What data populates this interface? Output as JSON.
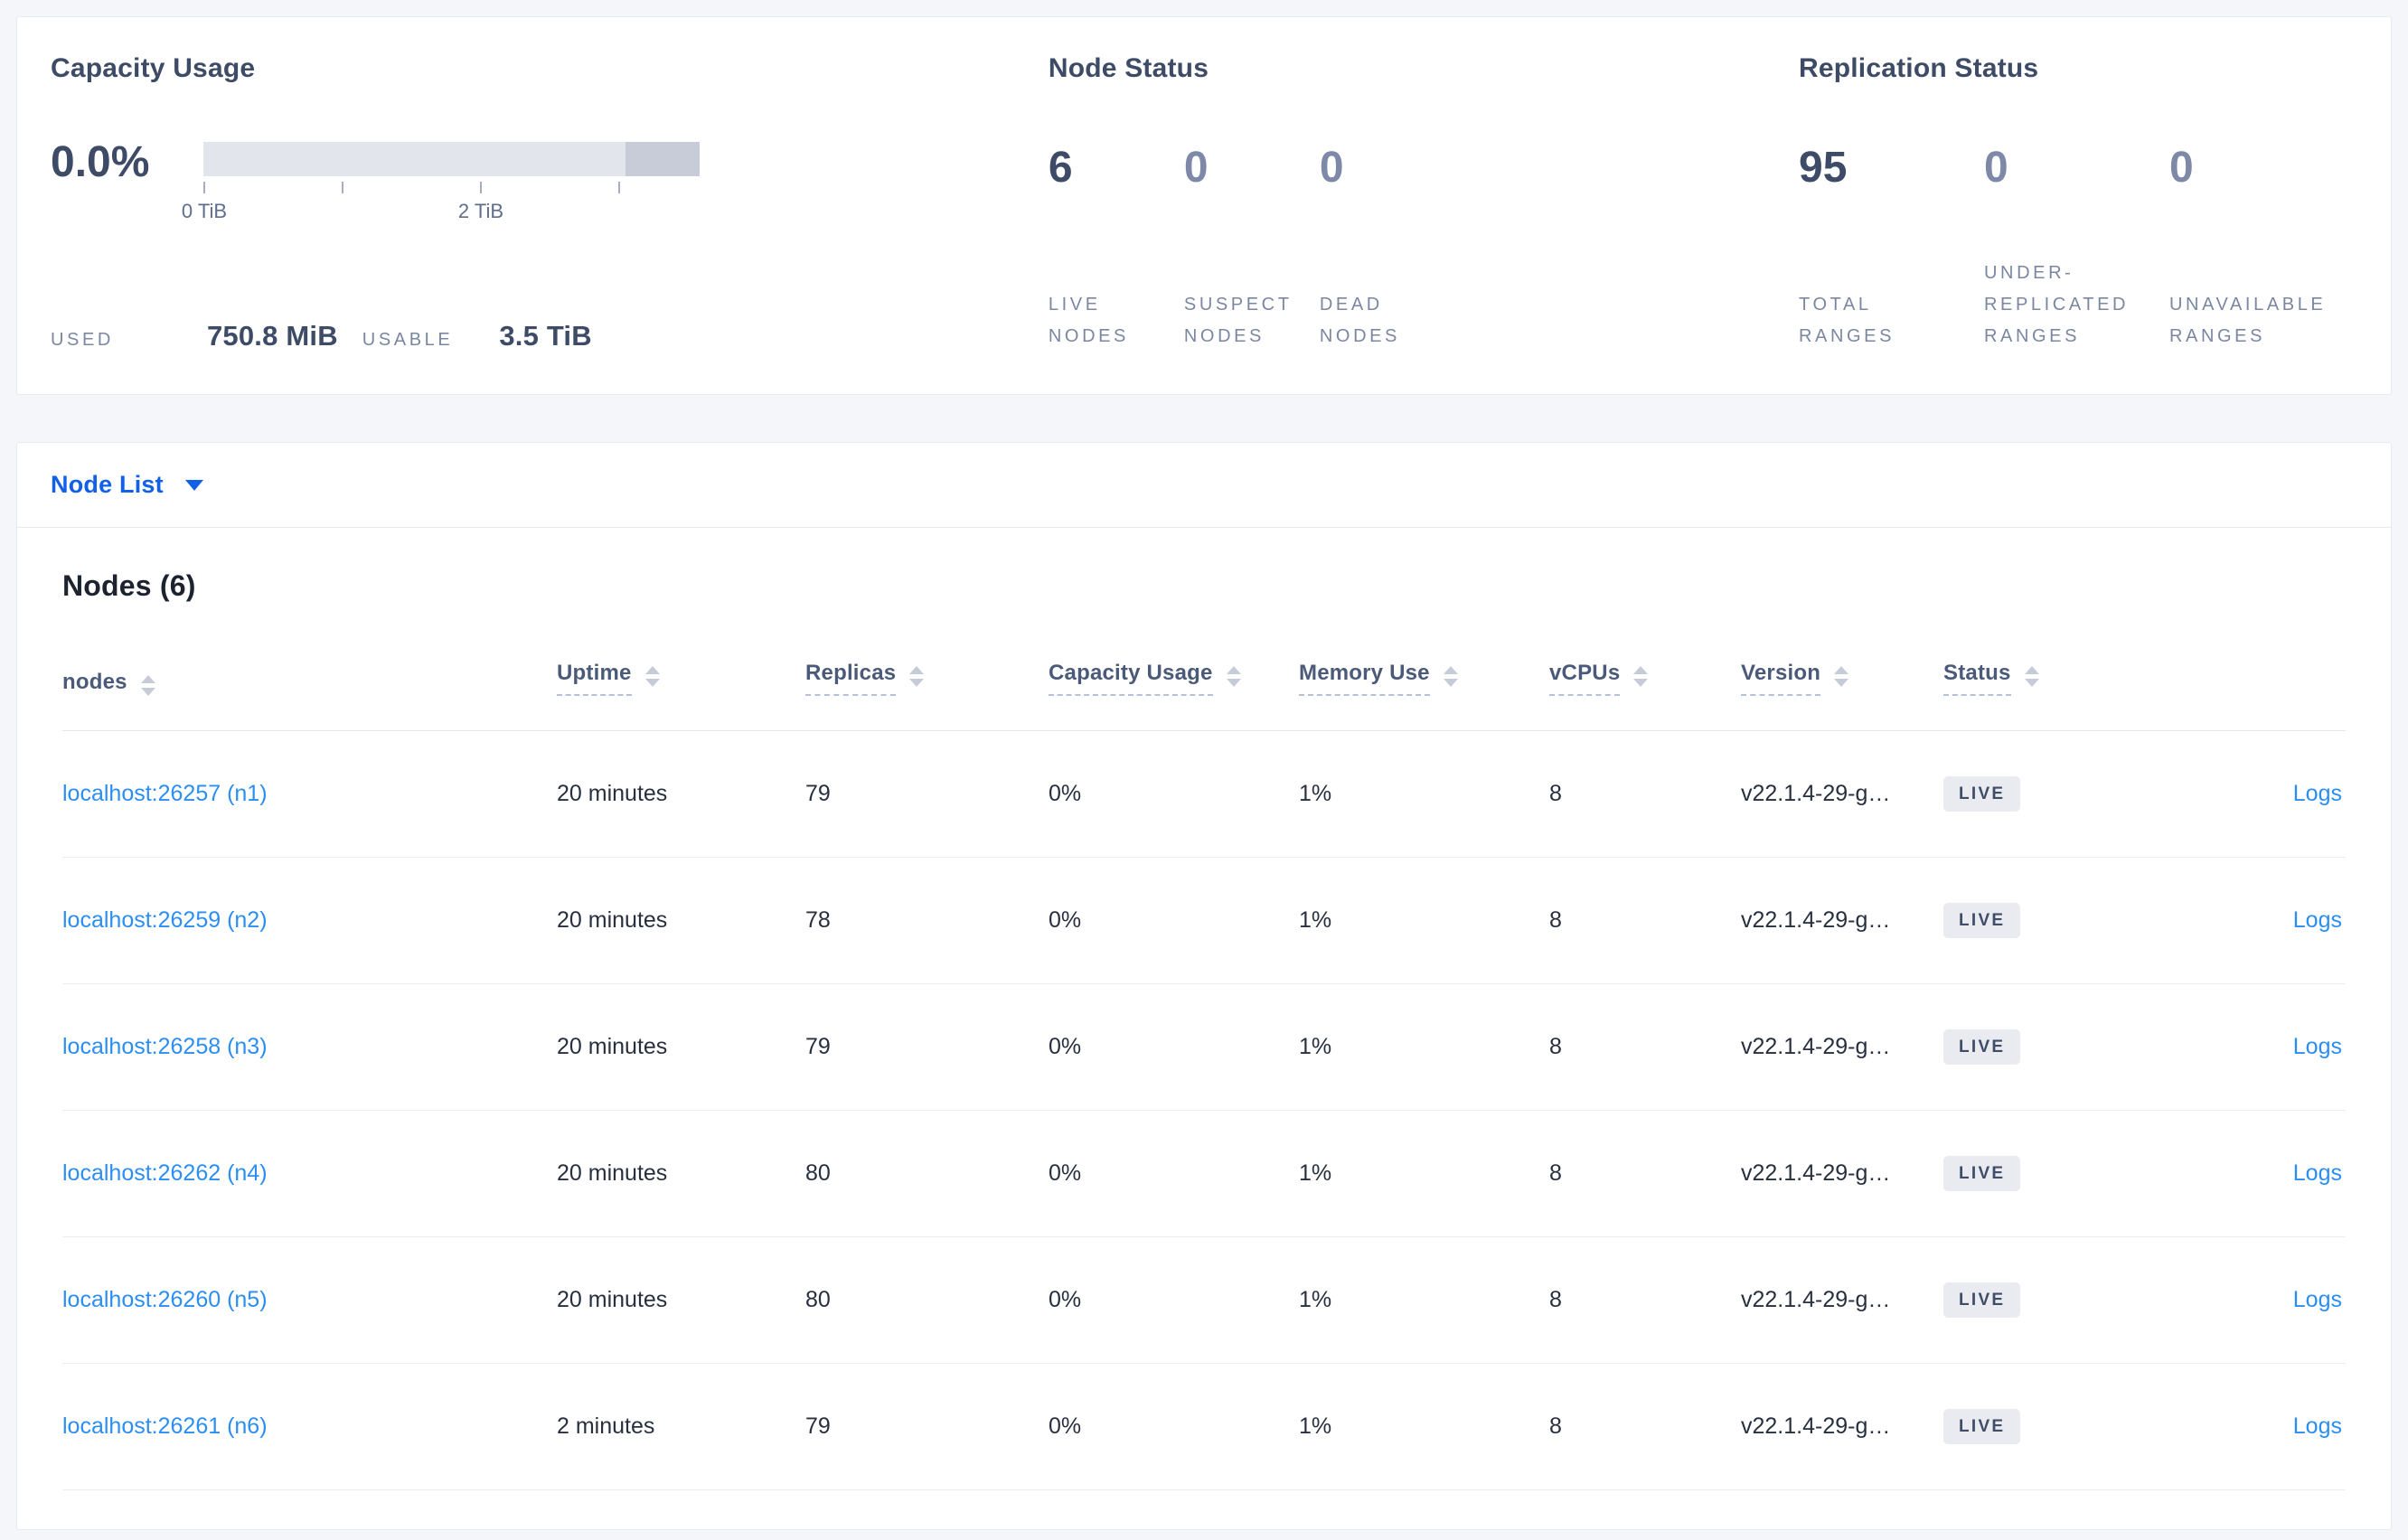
{
  "colors": {
    "brand_blue": "#1160e8",
    "link_blue": "#2b8ef2",
    "dark_text": "#3d4b66",
    "muted_stat": "#7d89a7",
    "label_gray": "#7b87a1",
    "bar_track": "#e3e5ec",
    "bar_tail": "#c8ccd8",
    "live_badge_bg": "#e9ebf1",
    "live_badge_text": "#404d68",
    "page_bg": "#f4f6fa"
  },
  "summary": {
    "capacity": {
      "title": "Capacity Usage",
      "percent": "0.0%",
      "axis_labels": [
        "0 TiB",
        "2 TiB"
      ],
      "used_label": "USED",
      "used_value": "750.8 MiB",
      "usable_label": "USABLE",
      "usable_value": "3.5 TiB"
    },
    "node_status": {
      "title": "Node Status",
      "stats": [
        {
          "value": "6",
          "label": [
            "LIVE",
            "NODES"
          ],
          "emphasis": true
        },
        {
          "value": "0",
          "label": [
            "SUSPECT",
            "NODES"
          ],
          "emphasis": false
        },
        {
          "value": "0",
          "label": [
            "DEAD",
            "NODES"
          ],
          "emphasis": false
        }
      ]
    },
    "replication": {
      "title": "Replication Status",
      "stats": [
        {
          "value": "95",
          "label": [
            "TOTAL",
            "RANGES"
          ],
          "emphasis": true
        },
        {
          "value": "0",
          "label": [
            "UNDER-",
            "REPLICATED",
            "RANGES"
          ],
          "emphasis": false
        },
        {
          "value": "0",
          "label": [
            "UNAVAILABLE",
            "RANGES"
          ],
          "emphasis": false
        }
      ]
    }
  },
  "node_list": {
    "dropdown_label": "Node List"
  },
  "nodes_table": {
    "title": "Nodes (6)",
    "columns": [
      {
        "key": "nodes",
        "label": "nodes",
        "dashed": false,
        "sortable": true
      },
      {
        "key": "uptime",
        "label": "Uptime",
        "dashed": true,
        "sortable": true
      },
      {
        "key": "replicas",
        "label": "Replicas",
        "dashed": true,
        "sortable": true
      },
      {
        "key": "capacity-usage",
        "label": "Capacity Usage",
        "dashed": true,
        "sortable": true
      },
      {
        "key": "memory-use",
        "label": "Memory Use",
        "dashed": true,
        "sortable": true
      },
      {
        "key": "vcpus",
        "label": "vCPUs",
        "dashed": true,
        "sortable": true
      },
      {
        "key": "version",
        "label": "Version",
        "dashed": true,
        "sortable": true
      },
      {
        "key": "status",
        "label": "Status",
        "dashed": true,
        "sortable": true
      },
      {
        "key": "logs",
        "label": "",
        "dashed": false,
        "sortable": false
      }
    ],
    "rows": [
      {
        "node": "localhost:26257 (n1)",
        "uptime": "20 minutes",
        "replicas": "79",
        "capacity": "0%",
        "memory": "1%",
        "vcpus": "8",
        "version": "v22.1.4-29-g…",
        "status": "LIVE",
        "logs": "Logs"
      },
      {
        "node": "localhost:26259 (n2)",
        "uptime": "20 minutes",
        "replicas": "78",
        "capacity": "0%",
        "memory": "1%",
        "vcpus": "8",
        "version": "v22.1.4-29-g…",
        "status": "LIVE",
        "logs": "Logs"
      },
      {
        "node": "localhost:26258 (n3)",
        "uptime": "20 minutes",
        "replicas": "79",
        "capacity": "0%",
        "memory": "1%",
        "vcpus": "8",
        "version": "v22.1.4-29-g…",
        "status": "LIVE",
        "logs": "Logs"
      },
      {
        "node": "localhost:26262 (n4)",
        "uptime": "20 minutes",
        "replicas": "80",
        "capacity": "0%",
        "memory": "1%",
        "vcpus": "8",
        "version": "v22.1.4-29-g…",
        "status": "LIVE",
        "logs": "Logs"
      },
      {
        "node": "localhost:26260 (n5)",
        "uptime": "20 minutes",
        "replicas": "80",
        "capacity": "0%",
        "memory": "1%",
        "vcpus": "8",
        "version": "v22.1.4-29-g…",
        "status": "LIVE",
        "logs": "Logs"
      },
      {
        "node": "localhost:26261 (n6)",
        "uptime": "2 minutes",
        "replicas": "79",
        "capacity": "0%",
        "memory": "1%",
        "vcpus": "8",
        "version": "v22.1.4-29-g…",
        "status": "LIVE",
        "logs": "Logs"
      }
    ]
  }
}
